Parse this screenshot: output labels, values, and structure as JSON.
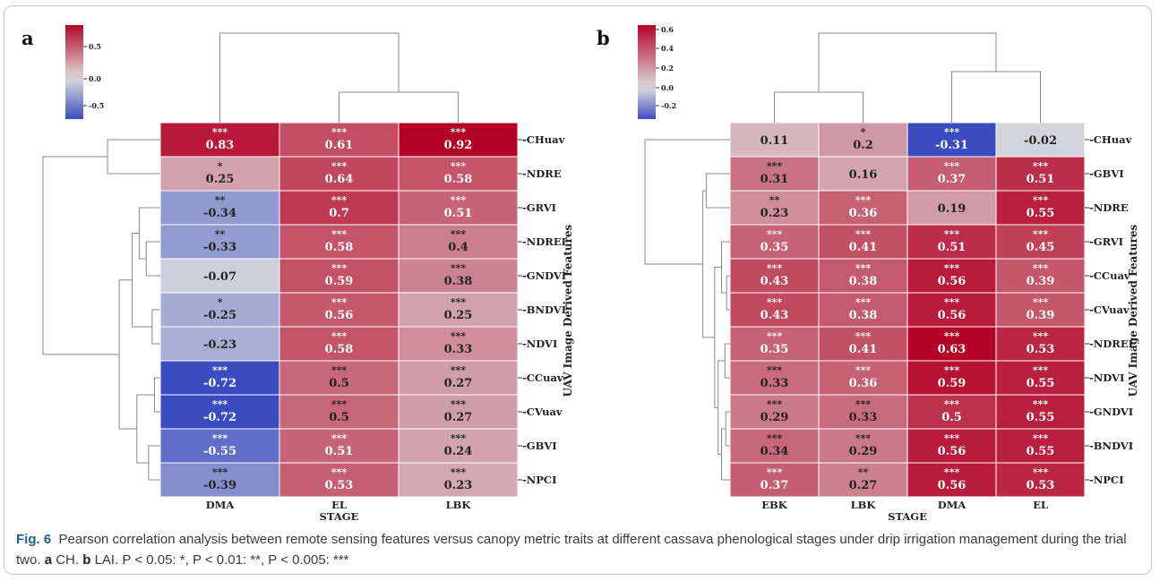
{
  "panels": [
    {
      "panel_label": "a",
      "xlabel": "STAGE",
      "ylabel": "UAV Image Derived Features",
      "colorbar_ticks": [
        "0.5",
        "0.0",
        "-0.5"
      ],
      "colors": {
        "neg": "#3b4cc0",
        "mid": "#dddddd",
        "pos": "#b40426"
      }
    },
    {
      "panel_label": "b",
      "xlabel": "STAGE",
      "ylabel": "UAV Image Derived Features",
      "colorbar_ticks": [
        "0.6",
        "0.4",
        "0.2",
        "0.0",
        "-0.2"
      ],
      "colors": {
        "neg": "#3b4cc0",
        "mid": "#dddddd",
        "pos": "#b40426"
      }
    }
  ],
  "caption": {
    "fig_label": "Fig. 6",
    "text": "Pearson correlation analysis between remote sensing features versus canopy metric traits at different cassava phenological stages under drip irrigation management during the trial two.",
    "a_label": "a",
    "a_text": "CH.",
    "b_label": "b",
    "b_text": "LAI. P < 0.05: *, P < 0.01: **, P < 0.005: ***"
  },
  "chart_data": [
    {
      "type": "heatmap",
      "title": "",
      "xlabel": "STAGE",
      "ylabel": "UAV Image Derived Features",
      "columns": [
        "DMA",
        "EL",
        "LBK"
      ],
      "rows": [
        "CHuav",
        "NDRE",
        "GRVI",
        "NDREI",
        "GNDVI",
        "BNDVI",
        "NDVI",
        "CCuav",
        "CVuav",
        "GBVI",
        "NPCI"
      ],
      "values": [
        [
          0.83,
          0.61,
          0.92
        ],
        [
          0.25,
          0.64,
          0.58
        ],
        [
          -0.34,
          0.7,
          0.51
        ],
        [
          -0.33,
          0.58,
          0.4
        ],
        [
          -0.07,
          0.59,
          0.38
        ],
        [
          -0.25,
          0.56,
          0.25
        ],
        [
          -0.23,
          0.58,
          0.33
        ],
        [
          -0.72,
          0.5,
          0.27
        ],
        [
          -0.72,
          0.5,
          0.27
        ],
        [
          -0.55,
          0.51,
          0.24
        ],
        [
          -0.39,
          0.53,
          0.23
        ]
      ],
      "value_labels": [
        [
          "0.83",
          "0.61",
          "0.92"
        ],
        [
          "0.25",
          "0.64",
          "0.58"
        ],
        [
          "-0.34",
          "0.7",
          "0.51"
        ],
        [
          "-0.33",
          "0.58",
          "0.4"
        ],
        [
          "-0.07",
          "0.59",
          "0.38"
        ],
        [
          "-0.25",
          "0.56",
          "0.25"
        ],
        [
          "-0.23",
          "0.58",
          "0.33"
        ],
        [
          "-0.72",
          "0.5",
          "0.27"
        ],
        [
          "-0.72",
          "0.5",
          "0.27"
        ],
        [
          "-0.55",
          "0.51",
          "0.24"
        ],
        [
          "-0.39",
          "0.53",
          "0.23"
        ]
      ],
      "significance": [
        [
          "***",
          "***",
          "***"
        ],
        [
          "*",
          "***",
          "***"
        ],
        [
          "**",
          "***",
          "***"
        ],
        [
          "**",
          "***",
          "***"
        ],
        [
          "",
          "***",
          "***"
        ],
        [
          "*",
          "***",
          "***"
        ],
        [
          "",
          "***",
          "***"
        ],
        [
          "***",
          "***",
          "***"
        ],
        [
          "***",
          "***",
          "***"
        ],
        [
          "***",
          "***",
          "***"
        ],
        [
          "***",
          "***",
          "***"
        ]
      ],
      "vmin": -0.72,
      "vmax": 0.92,
      "colormap": "coolwarm",
      "col_dendrogram": "DMA joins (EL, LBK)",
      "row_dendrogram": "hierarchical clustering of features"
    },
    {
      "type": "heatmap",
      "title": "",
      "xlabel": "STAGE",
      "ylabel": "UAV Image Derived Features",
      "columns": [
        "EBK",
        "LBK",
        "DMA",
        "EL"
      ],
      "rows": [
        "CHuav",
        "GBVI",
        "NDRE",
        "GRVI",
        "CCuav",
        "CVuav",
        "NDREI",
        "NDVI",
        "GNDVI",
        "BNDVI",
        "NPCI"
      ],
      "values": [
        [
          0.11,
          0.2,
          -0.31,
          -0.02
        ],
        [
          0.31,
          0.16,
          0.37,
          0.51
        ],
        [
          0.23,
          0.36,
          0.19,
          0.55
        ],
        [
          0.35,
          0.41,
          0.51,
          0.45
        ],
        [
          0.43,
          0.38,
          0.56,
          0.39
        ],
        [
          0.43,
          0.38,
          0.56,
          0.39
        ],
        [
          0.35,
          0.41,
          0.63,
          0.53
        ],
        [
          0.33,
          0.36,
          0.59,
          0.55
        ],
        [
          0.29,
          0.33,
          0.5,
          0.55
        ],
        [
          0.34,
          0.29,
          0.56,
          0.55
        ],
        [
          0.37,
          0.27,
          0.56,
          0.53
        ]
      ],
      "value_labels": [
        [
          "0.11",
          "0.2",
          "-0.31",
          "-0.02"
        ],
        [
          "0.31",
          "0.16",
          "0.37",
          "0.51"
        ],
        [
          "0.23",
          "0.36",
          "0.19",
          "0.55"
        ],
        [
          "0.35",
          "0.41",
          "0.51",
          "0.45"
        ],
        [
          "0.43",
          "0.38",
          "0.56",
          "0.39"
        ],
        [
          "0.43",
          "0.38",
          "0.56",
          "0.39"
        ],
        [
          "0.35",
          "0.41",
          "0.63",
          "0.53"
        ],
        [
          "0.33",
          "0.36",
          "0.59",
          "0.55"
        ],
        [
          "0.29",
          "0.33",
          "0.5",
          "0.55"
        ],
        [
          "0.34",
          "0.29",
          "0.56",
          "0.55"
        ],
        [
          "0.37",
          "0.27",
          "0.56",
          "0.53"
        ]
      ],
      "significance": [
        [
          "",
          "*",
          "***",
          ""
        ],
        [
          "***",
          "",
          "***",
          "***"
        ],
        [
          "**",
          "***",
          "",
          "***"
        ],
        [
          "***",
          "***",
          "***",
          "***"
        ],
        [
          "***",
          "***",
          "***",
          "***"
        ],
        [
          "***",
          "***",
          "***",
          "***"
        ],
        [
          "***",
          "***",
          "***",
          "***"
        ],
        [
          "***",
          "***",
          "***",
          "***"
        ],
        [
          "***",
          "***",
          "***",
          "***"
        ],
        [
          "***",
          "***",
          "***",
          "***"
        ],
        [
          "***",
          "**",
          "***",
          "***"
        ]
      ],
      "vmin": -0.31,
      "vmax": 0.63,
      "colormap": "coolwarm",
      "col_dendrogram": "(EBK, LBK) joins (DMA, EL)",
      "row_dendrogram": "hierarchical clustering of features"
    }
  ]
}
